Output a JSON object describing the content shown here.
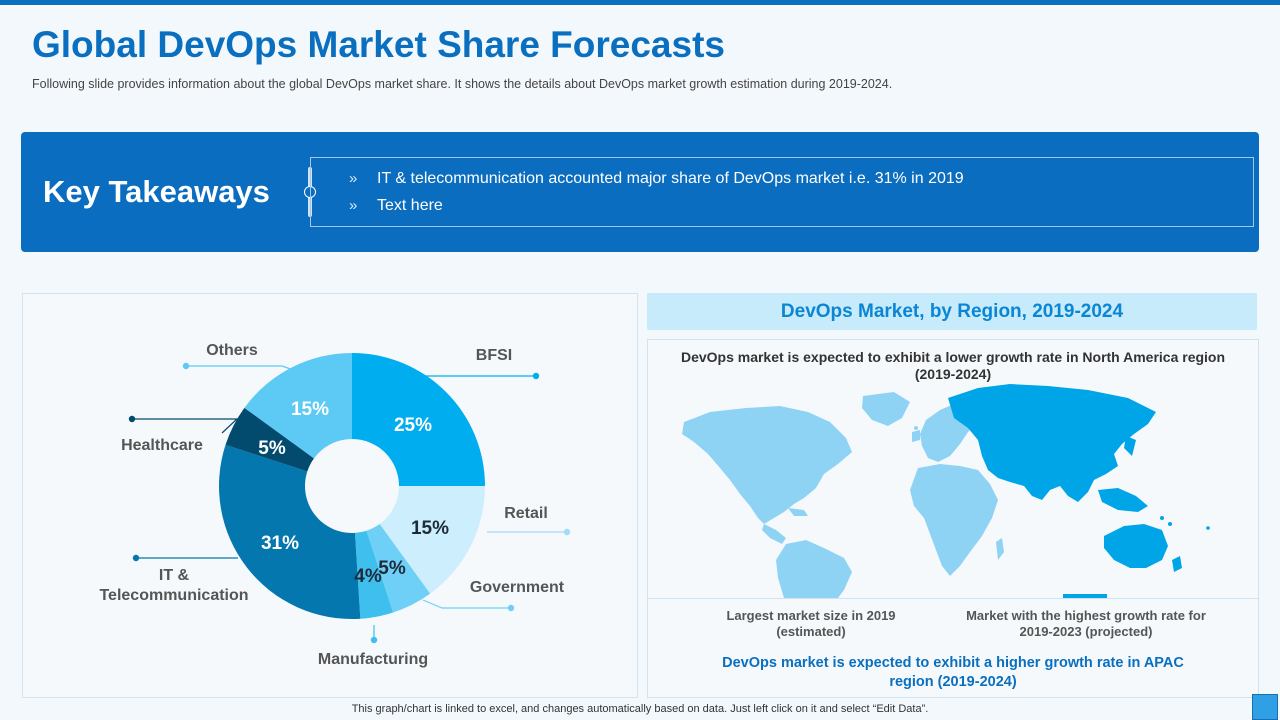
{
  "page": {
    "title": "Global DevOps Market Share Forecasts",
    "subtitle": "Following slide provides  information  about the global DevOps  market share. It shows the details about DevOps  market growth  estimation during 2019-2024."
  },
  "key_takeaways": {
    "title": "Key Takeaways",
    "bullet_glyph": "»",
    "items": [
      "IT & telecommunication accounted major share of DevOps market i.e. 31% in 2019",
      "Text here"
    ]
  },
  "chart_data": {
    "type": "pie",
    "title": "",
    "donut": true,
    "slices": [
      {
        "name": "BFSI",
        "value": 25,
        "label": "25%",
        "color": "#00aeef"
      },
      {
        "name": "Retail",
        "value": 15,
        "label": "15%",
        "color": "#cdeefc"
      },
      {
        "name": "Government",
        "value": 5,
        "label": "5%",
        "color": "#6fd0f7"
      },
      {
        "name": "Manufacturing",
        "value": 4,
        "label": "4%",
        "color": "#3fbfee"
      },
      {
        "name": "IT & Telecommunication",
        "value": 31,
        "label": "31%",
        "color": "#0477af",
        "legend_lines": [
          "IT &",
          "Telecommunication"
        ]
      },
      {
        "name": "Healthcare",
        "value": 5,
        "label": "5%",
        "color": "#034b6e"
      },
      {
        "name": "Others",
        "value": 15,
        "label": "15%",
        "color": "#5ccaf4"
      }
    ]
  },
  "region": {
    "header": "DevOps Market, by Region, 2019-2024",
    "north_america_note": "DevOps market is expected to exhibit a lower growth rate in North America region (2019-2024)",
    "largest_caption": "Largest market size in 2019 (estimated)",
    "growth_caption": "Market with the highest growth rate for 2019-2023  (projected)",
    "apac_note": "DevOps market is expected to exhibit a higher growth rate in APAC  region (2019-2024)",
    "colors": {
      "largest": "#8fd3f4",
      "highest_growth": "#00a5e8"
    }
  },
  "footer": "This graph/chart is linked to excel,  and changes automatically based on data. Just left click on it and select “Edit Data”."
}
